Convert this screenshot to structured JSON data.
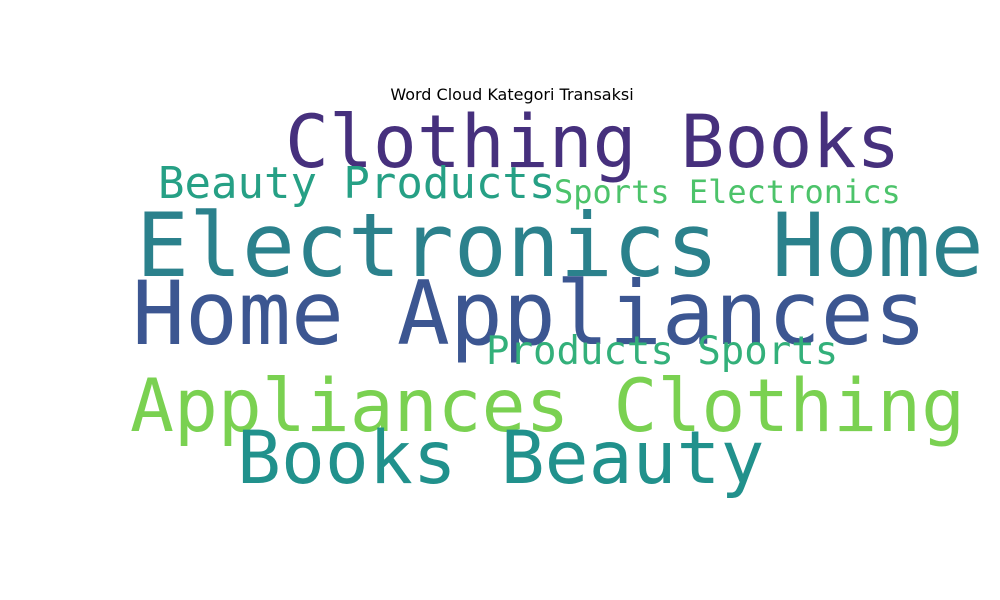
{
  "chart_data": {
    "type": "wordcloud",
    "title": "Word Cloud Kategori Transaksi",
    "words": [
      {
        "text": "Clothing Books",
        "color": "#46307d"
      },
      {
        "text": "Beauty Products",
        "color": "#26a085"
      },
      {
        "text": "Sports Electronics",
        "color": "#4cc36a"
      },
      {
        "text": "Electronics Home",
        "color": "#2b818c"
      },
      {
        "text": "Home Appliances",
        "color": "#3c5691"
      },
      {
        "text": "Products Sports",
        "color": "#33b07a"
      },
      {
        "text": "Appliances Clothing",
        "color": "#7ad151"
      },
      {
        "text": "Books Beauty",
        "color": "#21918c"
      }
    ]
  }
}
